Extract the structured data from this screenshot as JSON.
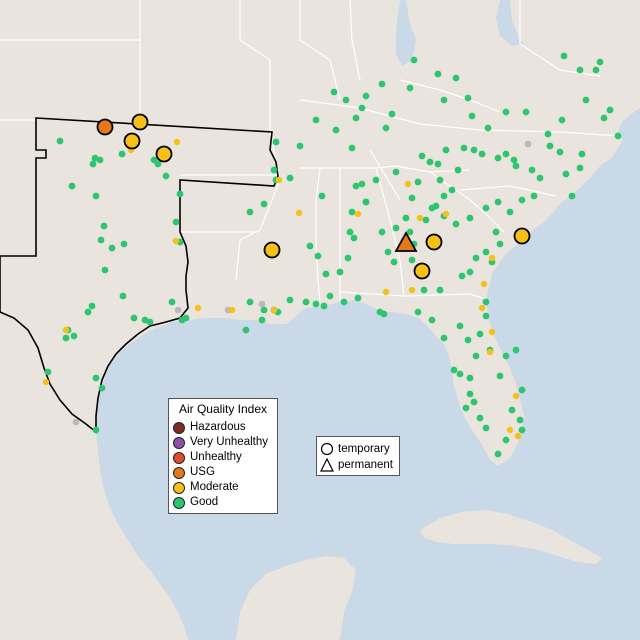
{
  "legend": {
    "title": "Air Quality Index",
    "categories": [
      {
        "label": "Hazardous",
        "color": "#7e2b24"
      },
      {
        "label": "Very Unhealthy",
        "color": "#8e4fa6"
      },
      {
        "label": "Unhealthy",
        "color": "#e24a2e"
      },
      {
        "label": "USG",
        "color": "#e4781b"
      },
      {
        "label": "Moderate",
        "color": "#f5c118"
      },
      {
        "label": "Good",
        "color": "#2dc56e"
      }
    ]
  },
  "monitor_types": [
    {
      "label": "temporary",
      "shape": "circle-icon"
    },
    {
      "label": "permanent",
      "shape": "triangle-icon"
    }
  ],
  "colors": {
    "water": "#c9d9e8",
    "land": "#e9e4dd",
    "boundary": "#ffffff",
    "highlight_outline": "#000000",
    "no_data": "#b9b9b9"
  }
}
